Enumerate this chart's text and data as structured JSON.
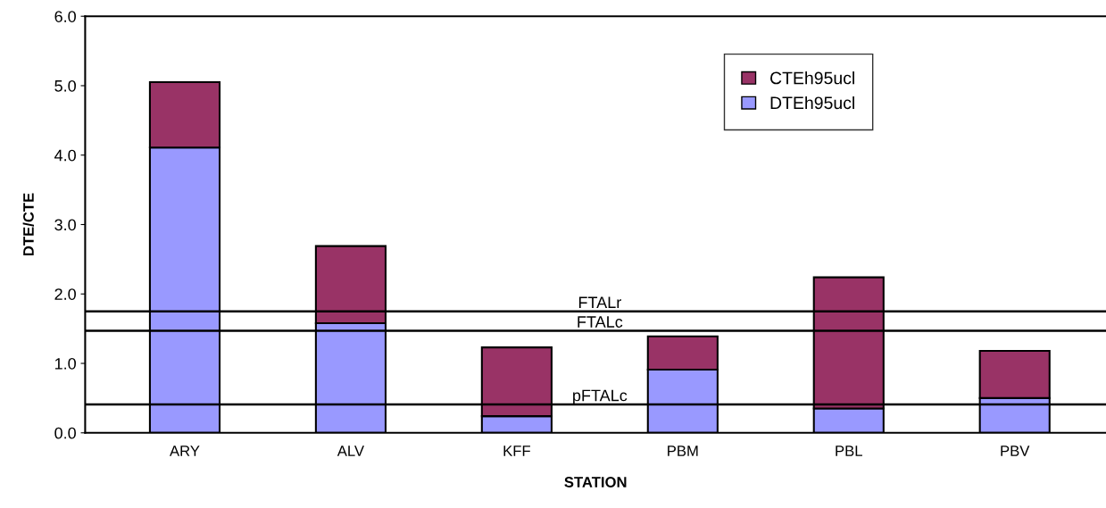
{
  "chart_data": {
    "type": "bar",
    "stacked": true,
    "xlabel": "STATION",
    "ylabel": "DTE/CTE",
    "categories": [
      "ARY",
      "ALV",
      "KFF",
      "PBM",
      "PBL",
      "PBV"
    ],
    "series": [
      {
        "name": "DTEh95ucl",
        "color": "#9999ff",
        "values": [
          4.11,
          1.58,
          0.24,
          0.91,
          0.35,
          0.5
        ]
      },
      {
        "name": "CTEh95ucl",
        "color": "#993366",
        "values": [
          0.94,
          1.11,
          0.99,
          0.48,
          1.89,
          0.68
        ]
      }
    ],
    "ylim": [
      0,
      6
    ],
    "yticks": [
      {
        "value": 0,
        "label": "0.0"
      },
      {
        "value": 1,
        "label": "1.0"
      },
      {
        "value": 2,
        "label": "2.0"
      },
      {
        "value": 3,
        "label": "3.0"
      },
      {
        "value": 4,
        "label": "4.0"
      },
      {
        "value": 5,
        "label": "5.0"
      },
      {
        "value": 6,
        "label": "6.0"
      }
    ],
    "ref_lines": [
      {
        "axis": "y",
        "value": 1.75,
        "label": "FTALr",
        "color": "#000000"
      },
      {
        "axis": "y",
        "value": 1.47,
        "label": "FTALc",
        "color": "#000000"
      },
      {
        "axis": "y",
        "value": 0.41,
        "label": "pFTALc",
        "color": "#000000"
      }
    ],
    "grid": false,
    "legend": "top right"
  }
}
